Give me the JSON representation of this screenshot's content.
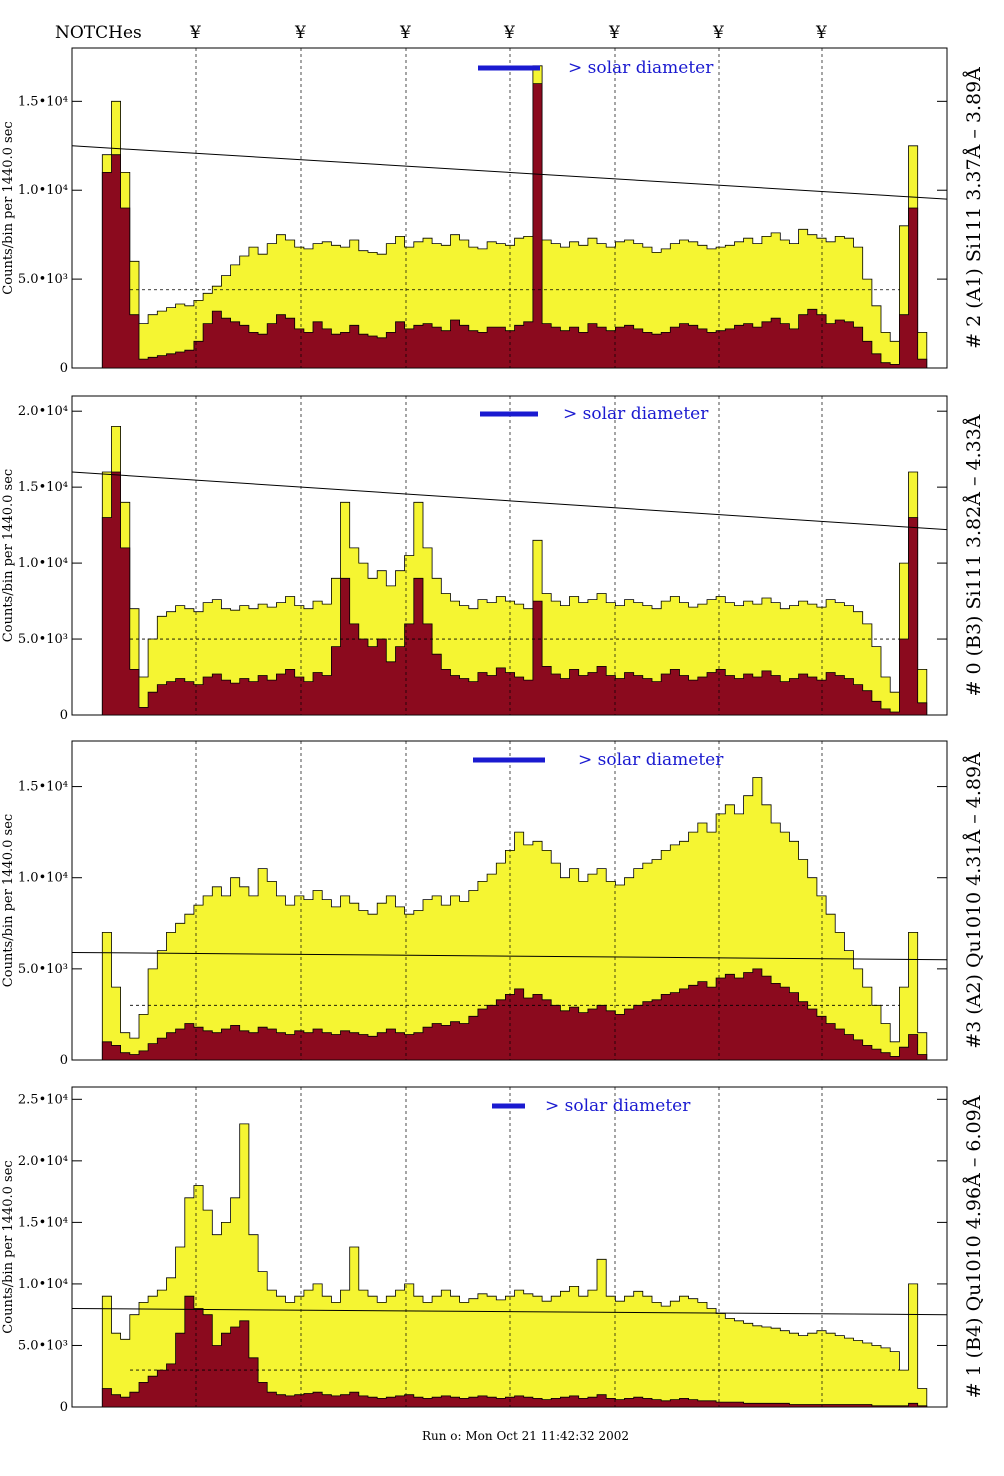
{
  "header": {
    "notches_label": "NOTCHes",
    "notch_marker": "¥",
    "notch_positions": [
      196,
      301,
      406,
      510,
      615,
      719,
      822
    ]
  },
  "footer": {
    "run_stamp": "Run o: Mon Oct 21 11:42:32 2002"
  },
  "colors": {
    "counts_total": "#f5f532",
    "counts_subset": "#8b0a1e",
    "legend_bar": "#1a1ad0",
    "outline": "#000000"
  },
  "chart_data": [
    {
      "type": "histogram",
      "panel": "2 (A1)",
      "side_label": "# 2 (A1) Si111  3.37Å – 3.89Å",
      "ylabel": "Counts/bin per  1440.0 sec",
      "legend": "> solar diameter",
      "xlim": [
        0,
        1
      ],
      "ylim": [
        0,
        18000
      ],
      "yticks": [
        0,
        5000,
        10000,
        15000
      ],
      "ytick_labels": [
        "0",
        "5.0•10³",
        "1.0•10⁴",
        "1.5•10⁴"
      ],
      "series": [
        {
          "name": "total",
          "values": [
            0,
            0,
            12000,
            15000,
            11000,
            6000,
            2500,
            3000,
            3200,
            3400,
            3600,
            3500,
            3800,
            4200,
            4600,
            5200,
            5800,
            6300,
            6800,
            6400,
            7000,
            7500,
            7200,
            6800,
            6700,
            7000,
            7100,
            6900,
            6800,
            7200,
            6600,
            6500,
            6400,
            7000,
            7400,
            6800,
            7100,
            7300,
            7000,
            6900,
            7500,
            7200,
            6800,
            6700,
            7100,
            7000,
            6900,
            7300,
            7400,
            17000,
            7200,
            7000,
            6800,
            7100,
            6900,
            7300,
            7000,
            6800,
            7100,
            7200,
            7000,
            6800,
            6500,
            6700,
            7000,
            7200,
            7100,
            6900,
            6700,
            6800,
            6900,
            7100,
            7300,
            7000,
            7400,
            7600,
            7200,
            7000,
            7800,
            7500,
            7300,
            7100,
            7400,
            7300,
            6800,
            5000,
            3500,
            2000,
            1500,
            8000,
            12500,
            2000,
            0
          ]
        },
        {
          "name": "subset",
          "values": [
            0,
            0,
            11000,
            12000,
            9000,
            3000,
            500,
            600,
            700,
            800,
            900,
            1000,
            1500,
            2500,
            3200,
            2800,
            2600,
            2400,
            2000,
            1900,
            2500,
            3000,
            2800,
            2200,
            2000,
            2600,
            2200,
            1900,
            2000,
            2400,
            1900,
            1800,
            1700,
            2000,
            2600,
            2200,
            2400,
            2500,
            2300,
            2100,
            2700,
            2400,
            2100,
            2000,
            2300,
            2300,
            2100,
            2400,
            2600,
            16000,
            2500,
            2300,
            2100,
            2300,
            2000,
            2500,
            2300,
            2100,
            2300,
            2400,
            2200,
            2000,
            1900,
            2000,
            2300,
            2500,
            2400,
            2200,
            2000,
            2100,
            2200,
            2400,
            2500,
            2300,
            2600,
            2800,
            2500,
            2200,
            3000,
            3300,
            3000,
            2500,
            2700,
            2600,
            2300,
            1500,
            800,
            300,
            200,
            3000,
            9000,
            500,
            0
          ]
        }
      ],
      "threshold_line": [
        12500,
        9500
      ],
      "mean_line": 4400
    },
    {
      "type": "histogram",
      "panel": "0 (B3)",
      "side_label": "# 0 (B3) Si111  3.82Å – 4.33Å",
      "ylabel": "Counts/bin per  1440.0 sec",
      "legend": "> solar diameter",
      "xlim": [
        0,
        1
      ],
      "ylim": [
        0,
        21000
      ],
      "yticks": [
        0,
        5000,
        10000,
        15000,
        20000
      ],
      "ytick_labels": [
        "0",
        "5.0•10³",
        "1.0•10⁴",
        "1.5•10⁴",
        "2.0•10⁴"
      ],
      "series": [
        {
          "name": "total",
          "values": [
            0,
            0,
            16000,
            19000,
            14000,
            7000,
            2500,
            5000,
            6500,
            6800,
            7200,
            7000,
            6800,
            7400,
            7600,
            7000,
            6900,
            7200,
            7000,
            7300,
            7100,
            7400,
            7800,
            7200,
            7000,
            7500,
            7300,
            9000,
            14000,
            11000,
            10000,
            9000,
            9500,
            8500,
            9500,
            10500,
            14000,
            11000,
            9000,
            8000,
            7500,
            7200,
            7000,
            7600,
            7400,
            7800,
            7500,
            7300,
            7000,
            11500,
            8000,
            7500,
            7200,
            7800,
            7400,
            7600,
            8000,
            7400,
            7200,
            7600,
            7400,
            7200,
            7000,
            7500,
            7800,
            7400,
            7100,
            7300,
            7600,
            7800,
            7400,
            7200,
            7500,
            7300,
            7700,
            7400,
            7000,
            7200,
            7500,
            7300,
            7100,
            7600,
            7400,
            7200,
            6800,
            6000,
            4500,
            2500,
            1500,
            10000,
            16000,
            3000,
            0
          ]
        },
        {
          "name": "subset",
          "values": [
            0,
            0,
            13000,
            16000,
            11000,
            3000,
            500,
            1500,
            2000,
            2200,
            2400,
            2200,
            2000,
            2500,
            2700,
            2300,
            2100,
            2400,
            2200,
            2600,
            2300,
            2700,
            3000,
            2500,
            2200,
            2800,
            2600,
            4500,
            9000,
            6000,
            5000,
            4500,
            5000,
            3500,
            4500,
            6000,
            9000,
            6000,
            4000,
            3000,
            2600,
            2400,
            2200,
            2800,
            2600,
            3100,
            2800,
            2500,
            2300,
            7500,
            3200,
            2700,
            2400,
            3000,
            2600,
            2800,
            3200,
            2600,
            2400,
            2800,
            2600,
            2400,
            2200,
            2700,
            3000,
            2600,
            2300,
            2500,
            2800,
            3000,
            2600,
            2400,
            2700,
            2500,
            2900,
            2600,
            2200,
            2400,
            2700,
            2500,
            2300,
            2800,
            2600,
            2400,
            2000,
            1600,
            900,
            400,
            200,
            5000,
            13000,
            800,
            0
          ]
        }
      ],
      "threshold_line": [
        16000,
        12200
      ],
      "mean_line": 5000
    },
    {
      "type": "histogram",
      "panel": "3 (A2)",
      "side_label": "#3 (A2) Qu1010  4.31Å – 4.89Å",
      "ylabel": "Counts/bin per  1440.0 sec",
      "legend": "> solar diameter",
      "xlim": [
        0,
        1
      ],
      "ylim": [
        0,
        17500
      ],
      "yticks": [
        0,
        5000,
        10000,
        15000
      ],
      "ytick_labels": [
        "0",
        "5.0•10³",
        "1.0•10⁴",
        "1.5•10⁴"
      ],
      "series": [
        {
          "name": "total",
          "values": [
            0,
            0,
            7000,
            4000,
            1500,
            1200,
            2500,
            5000,
            6000,
            7000,
            7500,
            8000,
            8500,
            9000,
            9500,
            9000,
            10000,
            9500,
            9000,
            10500,
            9800,
            9000,
            8500,
            9000,
            8800,
            9300,
            8800,
            8400,
            9000,
            8600,
            8200,
            8000,
            8600,
            9000,
            8400,
            8000,
            8200,
            8800,
            9000,
            8500,
            9000,
            8700,
            9300,
            9800,
            10200,
            10800,
            11500,
            12500,
            11800,
            12000,
            11500,
            10800,
            10000,
            10500,
            9800,
            10200,
            10500,
            9800,
            9600,
            10000,
            10500,
            10800,
            11000,
            11500,
            11800,
            12000,
            12500,
            13000,
            12500,
            13500,
            14000,
            13500,
            14500,
            15500,
            14000,
            13000,
            12500,
            12000,
            11000,
            10000,
            9000,
            8000,
            7000,
            6000,
            5000,
            4000,
            3000,
            2000,
            1000,
            4000,
            7000,
            1500,
            0
          ]
        },
        {
          "name": "subset",
          "values": [
            0,
            0,
            1000,
            800,
            400,
            300,
            500,
            900,
            1200,
            1500,
            1700,
            2000,
            1800,
            1600,
            1500,
            1700,
            1900,
            1600,
            1500,
            1800,
            1700,
            1500,
            1400,
            1600,
            1500,
            1700,
            1500,
            1400,
            1600,
            1500,
            1400,
            1300,
            1500,
            1700,
            1500,
            1400,
            1500,
            1800,
            2000,
            1900,
            2100,
            2000,
            2400,
            2800,
            3000,
            3300,
            3600,
            3900,
            3400,
            3600,
            3300,
            3000,
            2700,
            2900,
            2600,
            2800,
            3000,
            2700,
            2500,
            2800,
            3000,
            3200,
            3300,
            3600,
            3700,
            3900,
            4100,
            4300,
            4000,
            4500,
            4700,
            4500,
            4800,
            5000,
            4600,
            4200,
            4000,
            3700,
            3200,
            2800,
            2400,
            2000,
            1700,
            1400,
            1100,
            800,
            600,
            400,
            200,
            700,
            1400,
            300,
            0
          ]
        }
      ],
      "threshold_line": [
        5900,
        5500
      ],
      "mean_line": 3000
    },
    {
      "type": "histogram",
      "panel": "1 (B4)",
      "side_label": "# 1 (B4) Qu1010  4.96Å – 6.09Å",
      "ylabel": "Counts/bin per  1440.0 sec",
      "legend": "> solar diameter",
      "xlim": [
        0,
        1
      ],
      "ylim": [
        0,
        26000
      ],
      "yticks": [
        0,
        5000,
        10000,
        15000,
        20000,
        25000
      ],
      "ytick_labels": [
        "0",
        "5.0•10³",
        "1.0•10⁴",
        "1.5•10⁴",
        "2.0•10⁴",
        "2.5•10⁴"
      ],
      "series": [
        {
          "name": "total",
          "values": [
            0,
            0,
            9000,
            6000,
            5500,
            7500,
            8500,
            9000,
            9500,
            10500,
            13000,
            17000,
            18000,
            16000,
            14000,
            15000,
            17000,
            23000,
            14000,
            11000,
            9500,
            9000,
            8500,
            9000,
            9500,
            10000,
            9000,
            8500,
            9500,
            13000,
            9500,
            9000,
            8500,
            9000,
            9500,
            10000,
            9000,
            8500,
            9000,
            9500,
            9000,
            8500,
            8800,
            9200,
            9000,
            8700,
            9000,
            9500,
            9200,
            9000,
            8600,
            9000,
            9400,
            9800,
            9000,
            9500,
            12000,
            9000,
            8600,
            9000,
            9400,
            9000,
            8500,
            8200,
            8600,
            9000,
            8800,
            8500,
            8000,
            7600,
            7200,
            7000,
            6800,
            6600,
            6500,
            6400,
            6200,
            6000,
            5800,
            6000,
            6200,
            6000,
            5800,
            5600,
            5400,
            5200,
            5000,
            4800,
            4500,
            3000,
            10000,
            1500,
            0
          ]
        },
        {
          "name": "subset",
          "values": [
            0,
            0,
            1500,
            1000,
            800,
            1200,
            2000,
            2500,
            3000,
            3500,
            6000,
            9000,
            8000,
            7500,
            5000,
            6000,
            6500,
            7000,
            4000,
            2000,
            1200,
            1000,
            900,
            1000,
            1100,
            1200,
            1000,
            900,
            1000,
            1200,
            900,
            800,
            700,
            800,
            900,
            1000,
            800,
            700,
            800,
            900,
            800,
            700,
            800,
            900,
            800,
            700,
            800,
            900,
            800,
            700,
            600,
            700,
            800,
            900,
            700,
            800,
            1000,
            700,
            600,
            700,
            800,
            700,
            600,
            500,
            600,
            700,
            600,
            500,
            500,
            400,
            400,
            400,
            300,
            300,
            300,
            300,
            300,
            200,
            200,
            200,
            200,
            200,
            200,
            200,
            200,
            200,
            100,
            100,
            100,
            100,
            300,
            100,
            0
          ]
        }
      ],
      "threshold_line": [
        8000,
        7500
      ],
      "mean_line": 3000
    }
  ]
}
